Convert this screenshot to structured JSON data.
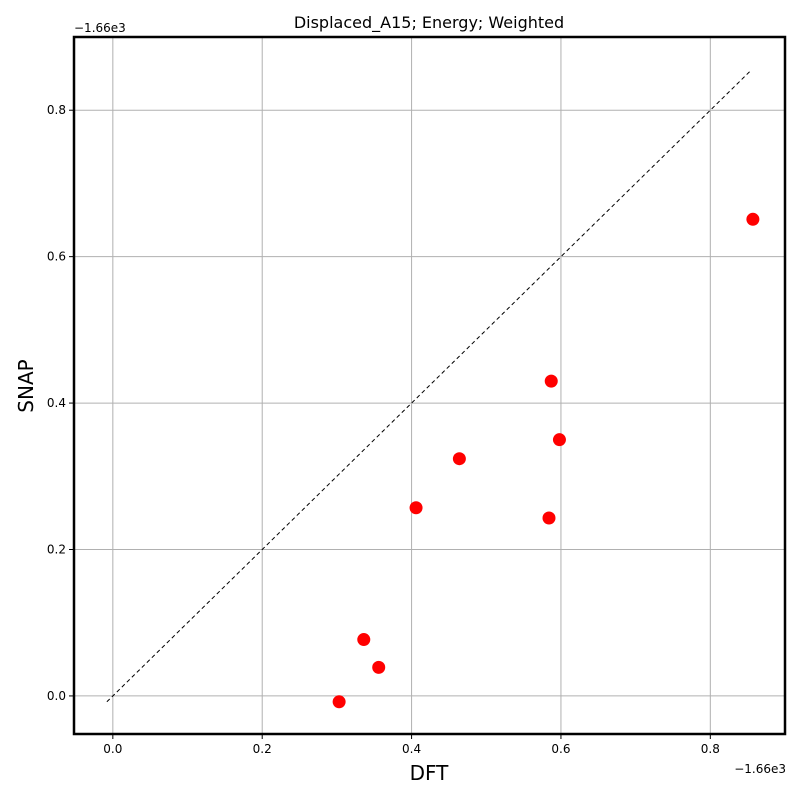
{
  "chart_data": {
    "type": "scatter",
    "title": "Displaced_A15; Energy; Weighted",
    "xlabel": "DFT",
    "ylabel": "SNAP",
    "x_offset_label": "−1.66e3",
    "y_offset_label": "−1.66e3",
    "xlim": [
      -0.052,
      0.9
    ],
    "ylim": [
      -0.052,
      0.9
    ],
    "xticks": [
      0.0,
      0.2,
      0.4,
      0.6,
      0.8
    ],
    "xtick_labels": [
      "0.0",
      "0.2",
      "0.4",
      "0.6",
      "0.8"
    ],
    "yticks": [
      0.0,
      0.2,
      0.4,
      0.6,
      0.8
    ],
    "ytick_labels": [
      "0.0",
      "0.2",
      "0.4",
      "0.6",
      "0.8"
    ],
    "grid": true,
    "point_color": "#ff0000",
    "reference_line": {
      "x": [
        -0.008,
        0.853
      ],
      "y": [
        -0.008,
        0.853
      ],
      "style": "dashed",
      "color": "#000000"
    },
    "series": [
      {
        "x": [
          0.303,
          0.336,
          0.356,
          0.406,
          0.464,
          0.584,
          0.587,
          0.598,
          0.857
        ],
        "y": [
          -0.008,
          0.077,
          0.039,
          0.257,
          0.324,
          0.243,
          0.43,
          0.35,
          0.651
        ]
      }
    ]
  }
}
